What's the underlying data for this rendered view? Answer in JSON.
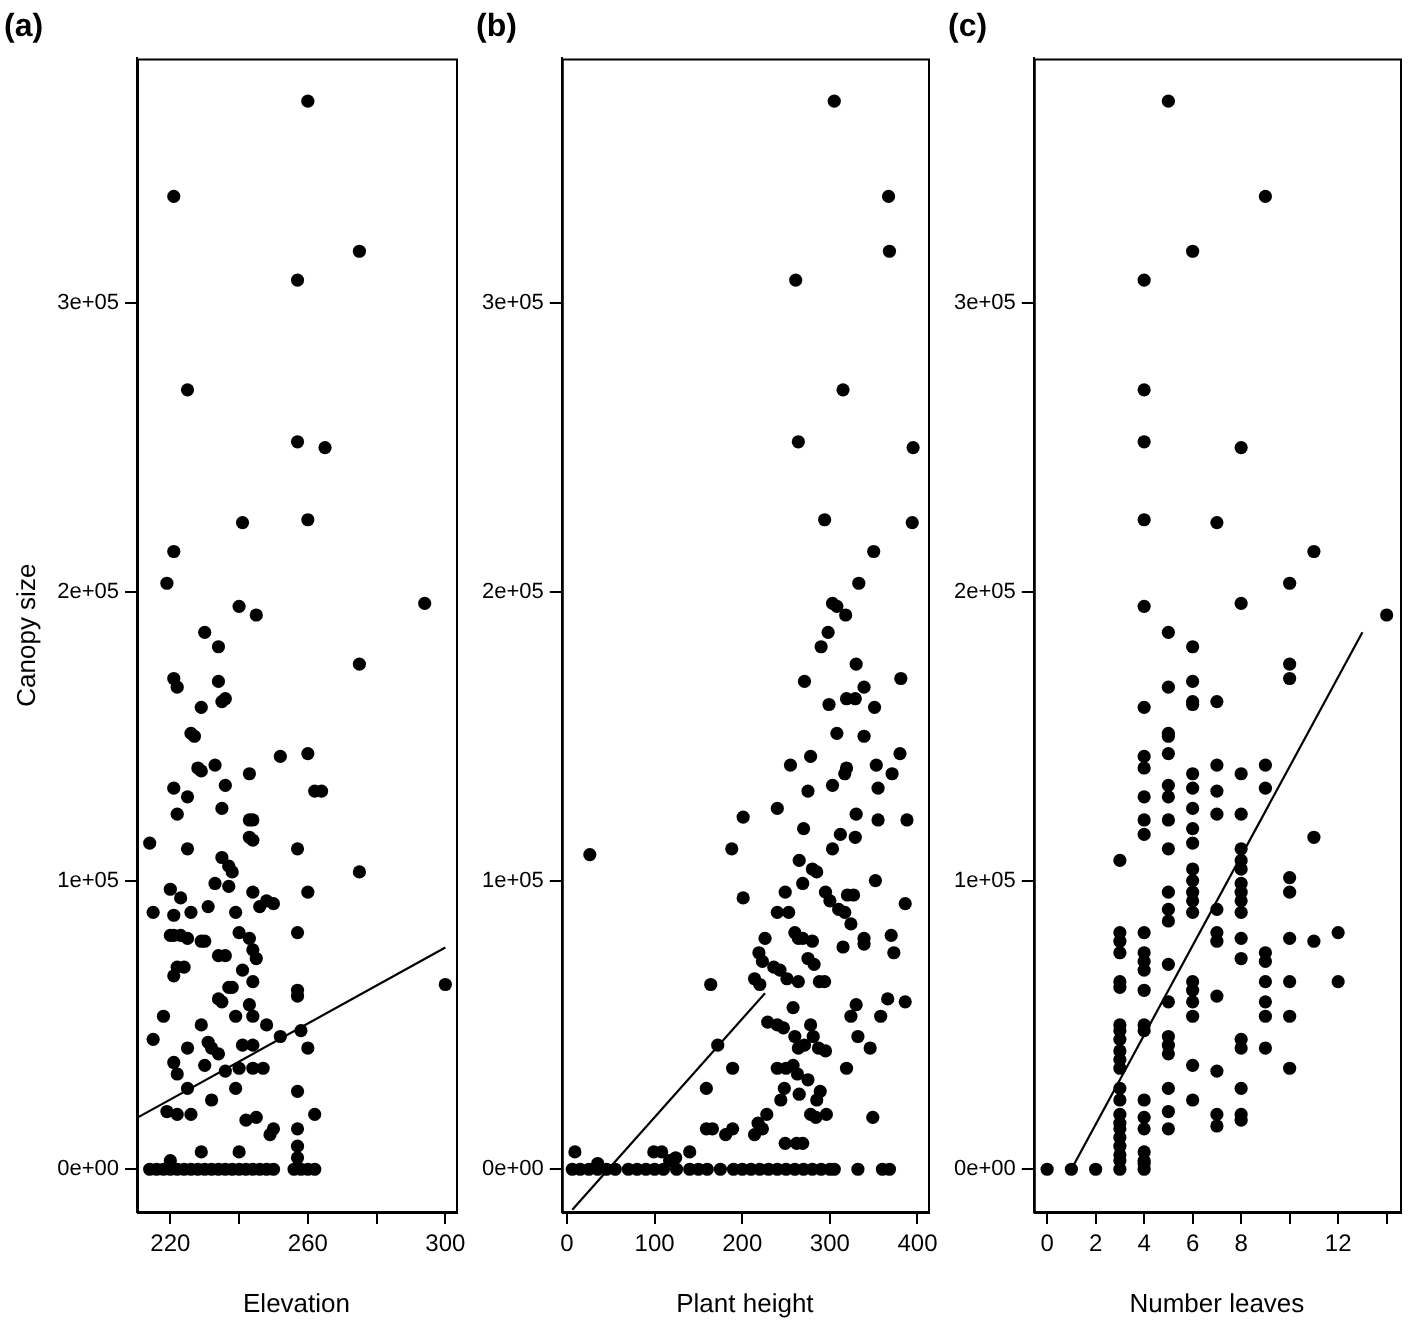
{
  "chart_data": [
    {
      "type": "scatter",
      "title": "(a)",
      "xlabel": "Elevation",
      "ylabel": "Canopy size",
      "xlim": [
        210.3,
        303.1
      ],
      "ylim": [
        -14800,
        384800
      ],
      "xticks": [
        220,
        {
          "value": 240,
          "label": null
        },
        260,
        {
          "value": 280,
          "label": null
        },
        300
      ],
      "yticks": [
        {
          "value": 0,
          "label": "0e+00"
        },
        {
          "value": 100000,
          "label": "1e+05"
        },
        {
          "value": 200000,
          "label": "2e+05"
        },
        {
          "value": 300000,
          "label": "3e+05"
        }
      ],
      "series": [
        {
          "color": "#000000",
          "marker": "circle",
          "x": [
            260,
            221,
            275,
            257,
            225,
            257,
            265,
            241,
            260,
            221,
            219,
            240,
            245,
            294,
            230,
            234,
            275,
            221,
            222,
            234,
            235,
            236,
            229,
            226,
            227,
            252,
            260,
            233,
            228,
            229,
            243,
            221,
            225,
            262,
            264,
            236,
            235,
            222,
            243,
            244,
            243,
            244,
            214,
            225,
            257,
            235,
            275,
            237,
            238,
            233,
            237,
            220,
            244,
            260,
            215,
            223,
            226,
            248,
            250,
            246,
            231,
            221,
            239,
            220,
            221,
            223,
            225,
            240,
            257,
            229,
            230,
            243,
            234,
            236,
            244,
            245,
            222,
            224,
            221,
            241,
            237,
            238,
            244,
            257,
            257,
            300,
            234,
            235,
            243,
            218,
            239,
            244,
            229,
            258,
            248,
            215,
            260,
            252,
            231,
            232,
            241,
            244,
            225,
            234,
            236,
            240,
            244,
            247,
            230,
            221,
            222,
            257,
            225,
            239,
            232,
            219,
            222,
            226,
            262,
            245,
            242,
            249,
            250,
            257,
            229,
            240,
            220,
            257,
            257,
            214,
            216,
            218,
            220,
            222,
            224,
            226,
            228,
            230,
            232,
            234,
            236,
            238,
            240,
            242,
            244,
            246,
            248,
            250,
            256,
            258,
            260,
            262
          ],
          "values": [
            370000.0,
            337000.0,
            318000.0,
            308000.0,
            270000.0,
            252000.0,
            250000.0,
            224000.0,
            225000.0,
            214000.0,
            203000.0,
            195000.0,
            192000.0,
            196000.0,
            186000.0,
            181000.0,
            175000.0,
            170000.0,
            167000.0,
            169000.0,
            162000.0,
            163000.0,
            160000.0,
            151000.0,
            150000.0,
            143000.0,
            144000.0,
            140000.0,
            139000.0,
            138000.0,
            137000.0,
            132000.0,
            129000.0,
            131000.0,
            131000.0,
            133000.0,
            125000.0,
            123000.0,
            121000.0,
            121000.0,
            115000.0,
            114000.0,
            113000.0,
            111000.0,
            111000.0,
            108000.0,
            103000.0,
            105000.0,
            103000.0,
            99000.0,
            98000.0,
            97000.0,
            96000.0,
            96000.0,
            89000.0,
            94000.0,
            89000.0,
            93000.0,
            92000.0,
            91000.0,
            91000.0,
            88000.0,
            89000.0,
            81000.0,
            81000.0,
            81000.0,
            80000.0,
            82000.0,
            82000.0,
            79000.0,
            79000.0,
            80000.0,
            74000.0,
            74000.0,
            76000.0,
            73000.0,
            70000.0,
            70000.0,
            67000.0,
            69000.0,
            63000.0,
            63000.0,
            65000.0,
            62000.0,
            60000.0,
            64000.0,
            59000.0,
            58000.0,
            57000.0,
            53000.0,
            53000.0,
            53000.0,
            50000.0,
            48000.0,
            50000.0,
            45000.0,
            42000.0,
            46000.0,
            44000.0,
            42000.0,
            43000.0,
            43000.0,
            42000.0,
            40000.0,
            34000.0,
            35000.0,
            35000.0,
            35000.0,
            36000.0,
            37000.0,
            33000.0,
            27000.0,
            28000.0,
            28000.0,
            24000.0,
            20000.0,
            19000.0,
            19000.0,
            19000.0,
            18000.0,
            17000.0,
            12000.0,
            14000.0,
            14000.0,
            6000.0,
            6000.0,
            3000.0,
            8000.0,
            4000.0,
            0,
            0,
            0,
            0,
            0,
            0,
            0,
            0,
            0,
            0,
            0,
            0,
            0,
            0,
            0,
            0,
            0,
            0,
            0,
            0,
            0,
            0,
            0
          ]
        },
        {
          "type": "line",
          "color": "#000000",
          "marker": "none",
          "x": [
            210.3,
            300
          ],
          "values": [
            17800,
            76800
          ]
        }
      ]
    },
    {
      "type": "scatter",
      "title": "(b)",
      "xlabel": "Plant height",
      "xlim": [
        -6,
        412
      ],
      "ylim": [
        -14800,
        384800
      ],
      "xticks": [
        0,
        100,
        200,
        300,
        400
      ],
      "yticks": [
        {
          "value": 0,
          "label": "0e+00"
        },
        {
          "value": 100000,
          "label": "1e+05"
        },
        {
          "value": 200000,
          "label": "2e+05"
        },
        {
          "value": 300000,
          "label": "3e+05"
        }
      ],
      "series": [
        {
          "color": "#000000",
          "marker": "circle",
          "x": [
            305,
            367,
            368,
            261,
            315,
            264,
            395,
            294,
            394,
            350,
            333,
            303,
            308,
            318,
            298,
            290,
            330,
            381,
            271,
            339,
            319,
            329,
            299,
            351,
            308,
            339,
            255,
            278,
            380,
            319,
            317,
            353,
            303,
            275,
            355,
            371,
            240,
            201,
            330,
            270,
            355,
            388,
            312,
            329,
            303,
            188,
            26,
            265,
            280,
            285,
            269,
            352,
            249,
            201,
            295,
            300,
            320,
            327,
            386,
            310,
            317,
            240,
            253,
            370,
            226,
            260,
            264,
            269,
            339,
            324,
            280,
            315,
            339,
            219,
            223,
            373,
            275,
            282,
            236,
            243,
            251,
            214,
            220,
            264,
            288,
            294,
            164,
            366,
            386,
            258,
            330,
            358,
            324,
            240,
            247,
            229,
            278,
            281,
            332,
            260,
            172,
            264,
            271,
            287,
            346,
            295,
            189,
            240,
            250,
            319,
            258,
            263,
            275,
            248,
            265,
            159,
            289,
            244,
            285,
            278,
            296,
            284,
            349,
            228,
            218,
            223,
            214,
            159,
            166,
            189,
            181,
            99,
            108,
            140,
            249,
            262,
            269,
            9,
            117,
            124,
            35,
            6,
            15,
            25,
            35,
            45,
            55,
            70,
            80,
            90,
            100,
            110,
            125,
            140,
            150,
            160,
            175,
            190,
            200,
            210,
            220,
            230,
            240,
            250,
            260,
            270,
            280,
            290,
            300,
            305,
            332,
            360,
            368
          ],
          "values": [
            370000.0,
            337000.0,
            318000.0,
            308000.0,
            270000.0,
            252000.0,
            250000.0,
            225000.0,
            224000.0,
            214000.0,
            203000.0,
            196000.0,
            195000.0,
            192000.0,
            186000.0,
            181000.0,
            175000.0,
            170000.0,
            169000.0,
            167000.0,
            163000.0,
            163000.0,
            161000.0,
            160000.0,
            151000.0,
            150000.0,
            140000.0,
            143000.0,
            144000.0,
            139000.0,
            137000.0,
            140000.0,
            133000.0,
            131000.0,
            132000.0,
            137000.0,
            125000.0,
            122000.0,
            123000.0,
            118000.0,
            121000.0,
            121000.0,
            116000.0,
            115000.0,
            111000.0,
            111000.0,
            109000.0,
            107000.0,
            104000.0,
            103000.0,
            99000.0,
            100000.0,
            96000.0,
            94000.0,
            96000.0,
            93000.0,
            95000.0,
            95000.0,
            92000.0,
            90000.0,
            89000.0,
            89000.0,
            89000.0,
            81000.0,
            80000.0,
            82000.0,
            80000.0,
            80000.0,
            80000.0,
            85000.0,
            79000.0,
            77000.0,
            78000.0,
            75000.0,
            72000.0,
            75000.0,
            73000.0,
            71000.0,
            70000.0,
            69000.0,
            66000.0,
            66000.0,
            64000.0,
            65000.0,
            65000.0,
            65000.0,
            64000.0,
            59000.0,
            58000.0,
            56000.0,
            57000.0,
            53000.0,
            53000.0,
            50000.0,
            49000.0,
            51000.0,
            50000.0,
            46000.0,
            46000.0,
            46000.0,
            43000.0,
            42000.0,
            43000.0,
            42000.0,
            42000.0,
            41000.0,
            35000.0,
            35000.0,
            35000.0,
            35000.0,
            36000.0,
            33000.0,
            31000.0,
            28000.0,
            26000.0,
            28000.0,
            27000.0,
            24000.0,
            24000.0,
            19000.0,
            19000.0,
            18000.0,
            18000.0,
            19000.0,
            16000.0,
            14000.0,
            12000.0,
            14000.0,
            14000.0,
            14000.0,
            12000.0,
            6000.0,
            6000.0,
            6000.0,
            9000.0,
            9000.0,
            9000.0,
            6000.0,
            3000.0,
            4000.0,
            2000.0,
            0,
            0,
            0,
            0,
            0,
            0,
            0,
            0,
            0,
            0,
            0,
            0,
            0,
            0,
            0,
            0,
            0,
            0,
            0,
            0,
            0,
            0,
            0,
            0,
            0,
            0,
            0,
            0,
            0,
            0,
            0,
            0
          ]
        },
        {
          "type": "line",
          "color": "#000000",
          "marker": "none",
          "x": [
            6,
            226
          ],
          "values": [
            -14000,
            61000
          ]
        }
      ]
    },
    {
      "type": "scatter",
      "title": "(c)",
      "xlabel": "Number leaves",
      "xlim": [
        -0.55,
        14.55
      ],
      "ylim": [
        -14800,
        384800
      ],
      "xticks": [
        0,
        2,
        4,
        6,
        8,
        {
          "value": 10,
          "label": null
        },
        12,
        {
          "value": 14,
          "label": null
        }
      ],
      "yticks": [
        {
          "value": 0,
          "label": "0e+00"
        },
        {
          "value": 100000,
          "label": "1e+05"
        },
        {
          "value": 200000,
          "label": "2e+05"
        },
        {
          "value": 300000,
          "label": "3e+05"
        }
      ],
      "series": [
        {
          "color": "#000000",
          "marker": "circle",
          "x": [
            5,
            9,
            6,
            4,
            4,
            4,
            8,
            4,
            7,
            11,
            10,
            4,
            8,
            14,
            5,
            6,
            10,
            10,
            5,
            6,
            6,
            6,
            4,
            7,
            5,
            5,
            4,
            4,
            5,
            6,
            6,
            7,
            8,
            9,
            9,
            4,
            5,
            5,
            7,
            4,
            4,
            5,
            6,
            7,
            8,
            3,
            5,
            6,
            6,
            8,
            8,
            8,
            11,
            10,
            6,
            6,
            6,
            6,
            6,
            5,
            5,
            5,
            8,
            8,
            8,
            8,
            10,
            7,
            7,
            7,
            3,
            3,
            4,
            4,
            4,
            3,
            8,
            8,
            10,
            11,
            12,
            9,
            9,
            9,
            5,
            4,
            4,
            3,
            3,
            6,
            6,
            6,
            6,
            7,
            10,
            12,
            9,
            9,
            10,
            5,
            3,
            3,
            3,
            4,
            4,
            5,
            5,
            5,
            8,
            8,
            9,
            3,
            3,
            3,
            6,
            7,
            10,
            3,
            3,
            3,
            3,
            3,
            3,
            3,
            3,
            3,
            4,
            4,
            4,
            4,
            4,
            4,
            5,
            5,
            5,
            6,
            7,
            7,
            8,
            8,
            8,
            0,
            1,
            2,
            3,
            4
          ],
          "values": [
            370000.0,
            337000.0,
            318000.0,
            308000.0,
            270000.0,
            252000.0,
            250000.0,
            225000.0,
            224000.0,
            214000.0,
            203000.0,
            195000.0,
            196000.0,
            192000.0,
            186000.0,
            181000.0,
            175000.0,
            170000.0,
            167000.0,
            169000.0,
            162000.0,
            161000.0,
            160000.0,
            162000.0,
            151000.0,
            150000.0,
            143000.0,
            139000.0,
            144000.0,
            137000.0,
            132000.0,
            140000.0,
            137000.0,
            140000.0,
            132000.0,
            129000.0,
            133000.0,
            129000.0,
            131000.0,
            121000.0,
            116000.0,
            121000.0,
            125000.0,
            123000.0,
            123000.0,
            107000.0,
            111000.0,
            118000.0,
            113000.0,
            111000.0,
            107000.0,
            104000.0,
            115000.0,
            101000.0,
            104000.0,
            100000.0,
            96000.0,
            93000.0,
            89000.0,
            96000.0,
            90000.0,
            86000.0,
            99000.0,
            96000.0,
            93000.0,
            89000.0,
            96000.0,
            90000.0,
            82000.0,
            79000.0,
            82000.0,
            79000.0,
            82000.0,
            75000.0,
            72000.0,
            75000.0,
            80000.0,
            73000.0,
            80000.0,
            79000.0,
            82000.0,
            75000.0,
            72000.0,
            65000.0,
            71000.0,
            69000.0,
            62000.0,
            65000.0,
            63000.0,
            65000.0,
            62000.0,
            58000.0,
            53000.0,
            60000.0,
            65000.0,
            65000.0,
            58000.0,
            53000.0,
            53000.0,
            58000.0,
            50000.0,
            48000.0,
            45000.0,
            50000.0,
            48000.0,
            46000.0,
            43000.0,
            40000.0,
            45000.0,
            42000.0,
            42000.0,
            41000.0,
            38000.0,
            35000.0,
            36000.0,
            34000.0,
            35000.0,
            28000.0,
            24000.0,
            19000.0,
            16000.0,
            14000.0,
            11000.0,
            8000.0,
            5000.0,
            3000.0,
            24000.0,
            18000.0,
            14000.0,
            6000.0,
            3000.0,
            2000.0,
            28000.0,
            20000.0,
            14000.0,
            24000.0,
            19000.0,
            15000.0,
            28000.0,
            19000.0,
            17000.0,
            0,
            0,
            0,
            0,
            0
          ]
        },
        {
          "type": "line",
          "color": "#000000",
          "marker": "none",
          "x": [
            1,
            13
          ],
          "values": [
            0,
            186000
          ]
        }
      ]
    }
  ]
}
